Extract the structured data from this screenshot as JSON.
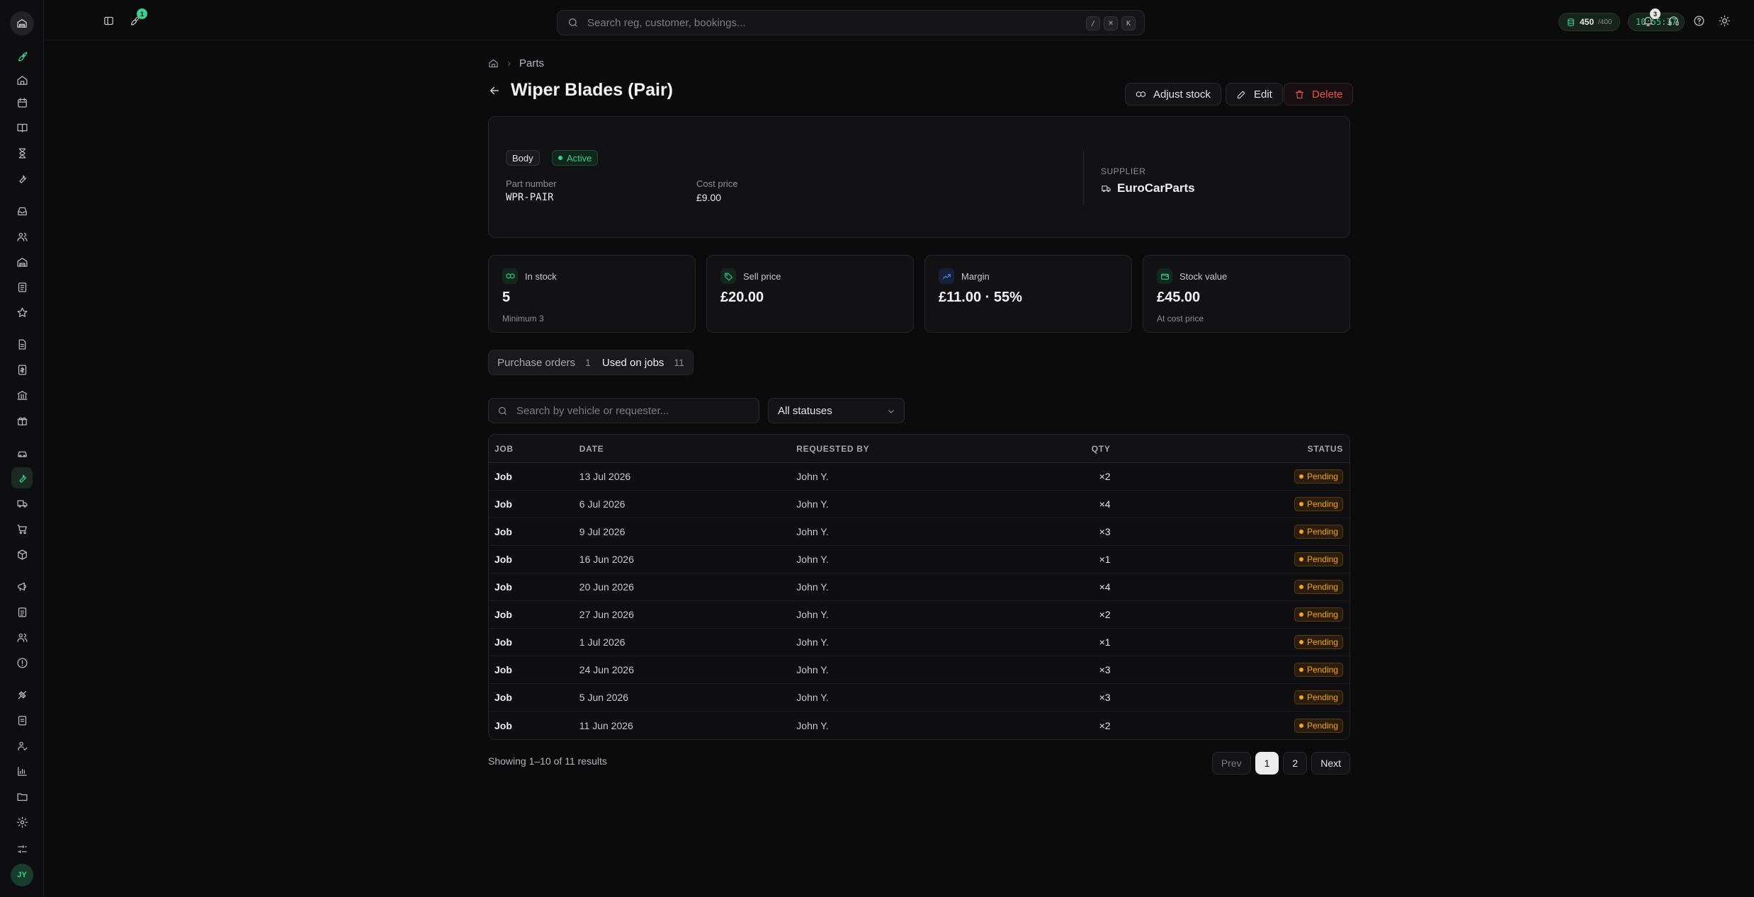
{
  "topbar": {
    "search_placeholder": "Search reg, customer, bookings...",
    "kbd_keys": [
      "/",
      "⌘",
      "K"
    ],
    "rocket_badge": "1",
    "notification_badge": "3",
    "credits_value": "450",
    "credits_total": "/400",
    "clock": "10:55:37"
  },
  "breadcrumb": {
    "section": "Parts"
  },
  "page": {
    "title": "Wiper Blades (Pair)"
  },
  "actions": {
    "adjust_stock": "Adjust stock",
    "edit": "Edit",
    "delete": "Delete"
  },
  "part": {
    "category": "Body",
    "status": "Active",
    "part_number_label": "Part number",
    "part_number": "WPR-PAIR",
    "cost_price_label": "Cost price",
    "cost_price": "£9.00",
    "supplier_label": "SUPPLIER",
    "supplier": "EuroCarParts"
  },
  "stats": [
    {
      "label": "In stock",
      "value": "5",
      "sub": "Minimum 3",
      "icon": "boxes-icon"
    },
    {
      "label": "Sell price",
      "value": "£20.00",
      "sub": "",
      "icon": "tag-icon"
    },
    {
      "label": "Margin",
      "value": "£11.00 · 55%",
      "sub": "",
      "icon": "trending-up-icon"
    },
    {
      "label": "Stock value",
      "value": "£45.00",
      "sub": "At cost price",
      "icon": "wallet-icon"
    }
  ],
  "tabs": [
    {
      "label": "Purchase orders",
      "count": "1"
    },
    {
      "label": "Used on jobs",
      "count": "11"
    }
  ],
  "filters": {
    "search_placeholder": "Search by vehicle or requester...",
    "status_select": "All statuses"
  },
  "table": {
    "headers": {
      "job": "JOB",
      "date": "DATE",
      "requested_by": "REQUESTED BY",
      "qty": "QTY",
      "status": "STATUS"
    },
    "rows": [
      {
        "job": "Job",
        "date": "13 Jul 2026",
        "requested_by": "John Y.",
        "qty": "×2",
        "status": "Pending"
      },
      {
        "job": "Job",
        "date": "6 Jul 2026",
        "requested_by": "John Y.",
        "qty": "×4",
        "status": "Pending"
      },
      {
        "job": "Job",
        "date": "9 Jul 2026",
        "requested_by": "John Y.",
        "qty": "×3",
        "status": "Pending"
      },
      {
        "job": "Job",
        "date": "16 Jun 2026",
        "requested_by": "John Y.",
        "qty": "×1",
        "status": "Pending"
      },
      {
        "job": "Job",
        "date": "20 Jun 2026",
        "requested_by": "John Y.",
        "qty": "×4",
        "status": "Pending"
      },
      {
        "job": "Job",
        "date": "27 Jun 2026",
        "requested_by": "John Y.",
        "qty": "×2",
        "status": "Pending"
      },
      {
        "job": "Job",
        "date": "1 Jul 2026",
        "requested_by": "John Y.",
        "qty": "×1",
        "status": "Pending"
      },
      {
        "job": "Job",
        "date": "24 Jun 2026",
        "requested_by": "John Y.",
        "qty": "×3",
        "status": "Pending"
      },
      {
        "job": "Job",
        "date": "5 Jun 2026",
        "requested_by": "John Y.",
        "qty": "×3",
        "status": "Pending"
      },
      {
        "job": "Job",
        "date": "11 Jun 2026",
        "requested_by": "John Y.",
        "qty": "×2",
        "status": "Pending"
      }
    ]
  },
  "footer": {
    "showing": "Showing 1–10 of 11 results",
    "prev": "Prev",
    "pages": [
      "1",
      "2"
    ],
    "next": "Next"
  },
  "user": {
    "initials": "JY"
  },
  "colors": {
    "accent": "#3ecf8e",
    "pending": "#f5a524",
    "danger": "#f05252",
    "margin": "#5b8def"
  }
}
